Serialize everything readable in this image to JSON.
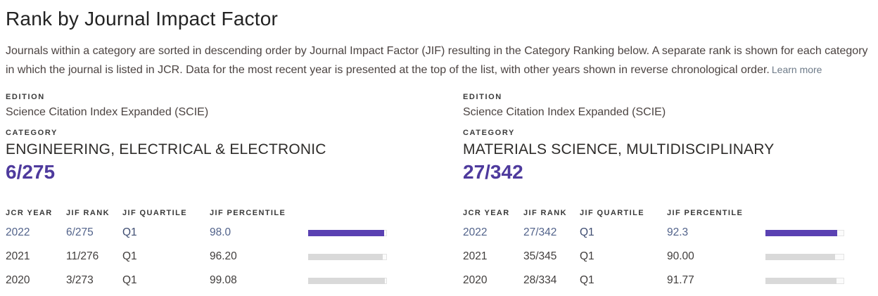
{
  "page": {
    "title": "Rank by Journal Impact Factor",
    "description": "Journals within a category are sorted in descending order by Journal Impact Factor (JIF) resulting in the Category Ranking below. A separate rank is shown for each category in which the journal is listed in JCR. Data for the most recent year is presented at the top of the list, with other years shown in reverse chronological order.",
    "learn_more_label": "Learn more"
  },
  "labels": {
    "edition": "EDITION",
    "category": "CATEGORY"
  },
  "table_headers": {
    "year": "JCR YEAR",
    "rank": "JIF RANK",
    "quartile": "JIF QUARTILE",
    "percentile": "JIF PERCENTILE"
  },
  "colors": {
    "accent_purple": "#5a41b2",
    "rank_purple": "#4e3a9d",
    "bar_gray": "#d9d9d9",
    "bar_track": "#fbfbfb",
    "current_row_text": "#51628a"
  },
  "panels": [
    {
      "edition_value": "Science Citation Index Expanded (SCIE)",
      "category_value": "ENGINEERING, ELECTRICAL & ELECTRONIC",
      "rank": "6/275",
      "rows": [
        {
          "year": "2022",
          "rank": "6/275",
          "quartile": "Q1",
          "percentile": "98.0",
          "bar_value": 98.0,
          "current": true
        },
        {
          "year": "2021",
          "rank": "11/276",
          "quartile": "Q1",
          "percentile": "96.20",
          "bar_value": 96.2,
          "current": false
        },
        {
          "year": "2020",
          "rank": "3/273",
          "quartile": "Q1",
          "percentile": "99.08",
          "bar_value": 99.08,
          "current": false
        }
      ]
    },
    {
      "edition_value": "Science Citation Index Expanded (SCIE)",
      "category_value": "MATERIALS SCIENCE, MULTIDISCIPLINARY",
      "rank": "27/342",
      "rows": [
        {
          "year": "2022",
          "rank": "27/342",
          "quartile": "Q1",
          "percentile": "92.3",
          "bar_value": 92.3,
          "current": true
        },
        {
          "year": "2021",
          "rank": "35/345",
          "quartile": "Q1",
          "percentile": "90.00",
          "bar_value": 90.0,
          "current": false
        },
        {
          "year": "2020",
          "rank": "28/334",
          "quartile": "Q1",
          "percentile": "91.77",
          "bar_value": 91.77,
          "current": false
        }
      ]
    }
  ]
}
